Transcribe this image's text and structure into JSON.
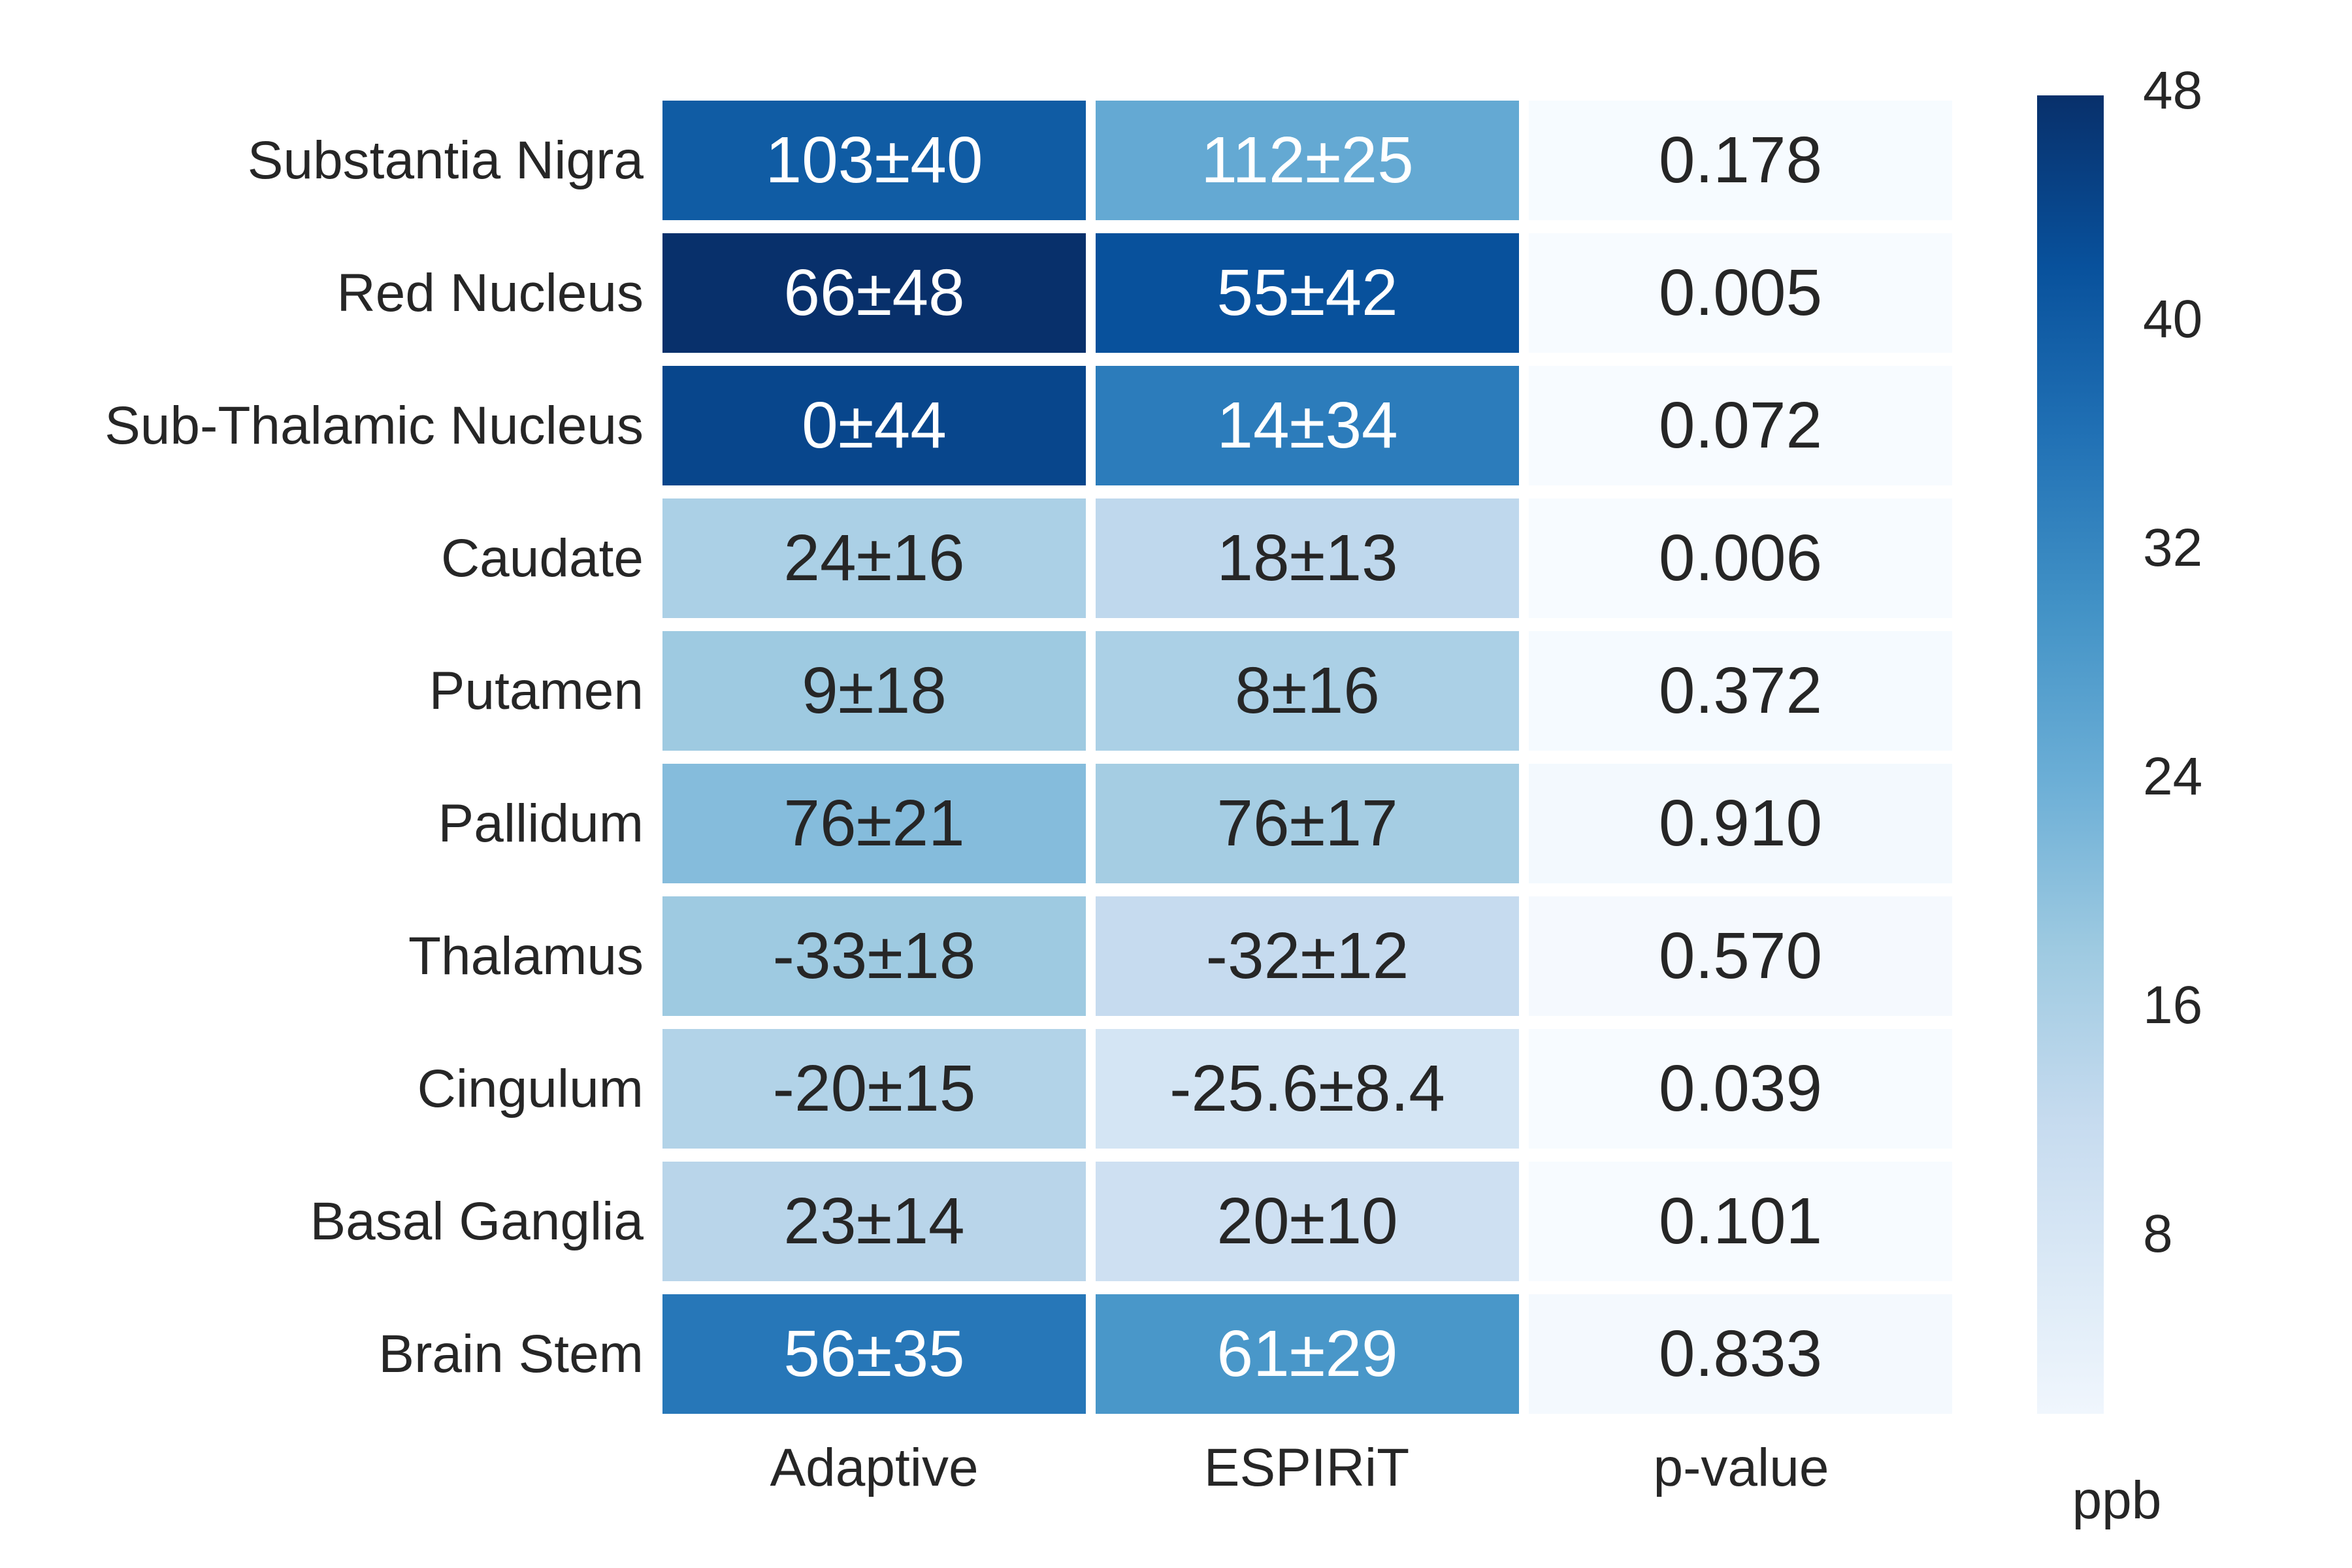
{
  "chart_data": {
    "type": "heatmap",
    "title": "",
    "columns": [
      "Adaptive",
      "ESPIRiT",
      "p-value"
    ],
    "rows": [
      {
        "label": "Substantia Nigra",
        "cells": [
          {
            "display": "103±40",
            "mean": 103,
            "std": 40
          },
          {
            "display": "112±25",
            "mean": 112,
            "std": 25
          },
          {
            "display": "0.178",
            "value": 0.178
          }
        ]
      },
      {
        "label": "Red Nucleus",
        "cells": [
          {
            "display": "66±48",
            "mean": 66,
            "std": 48
          },
          {
            "display": "55±42",
            "mean": 55,
            "std": 42
          },
          {
            "display": "0.005",
            "value": 0.005
          }
        ]
      },
      {
        "label": "Sub-Thalamic Nucleus",
        "cells": [
          {
            "display": "0±44",
            "mean": 0,
            "std": 44
          },
          {
            "display": "14±34",
            "mean": 14,
            "std": 34
          },
          {
            "display": "0.072",
            "value": 0.072
          }
        ]
      },
      {
        "label": "Caudate",
        "cells": [
          {
            "display": "24±16",
            "mean": 24,
            "std": 16
          },
          {
            "display": "18±13",
            "mean": 18,
            "std": 13
          },
          {
            "display": "0.006",
            "value": 0.006
          }
        ]
      },
      {
        "label": "Putamen",
        "cells": [
          {
            "display": "9±18",
            "mean": 9,
            "std": 18
          },
          {
            "display": "8±16",
            "mean": 8,
            "std": 16
          },
          {
            "display": "0.372",
            "value": 0.372
          }
        ]
      },
      {
        "label": "Pallidum",
        "cells": [
          {
            "display": "76±21",
            "mean": 76,
            "std": 21
          },
          {
            "display": "76±17",
            "mean": 76,
            "std": 17
          },
          {
            "display": "0.910",
            "value": 0.91
          }
        ]
      },
      {
        "label": "Thalamus",
        "cells": [
          {
            "display": "-33±18",
            "mean": -33,
            "std": 18
          },
          {
            "display": "-32±12",
            "mean": -32,
            "std": 12
          },
          {
            "display": "0.570",
            "value": 0.57
          }
        ]
      },
      {
        "label": "Cingulum",
        "cells": [
          {
            "display": "-20±15",
            "mean": -20,
            "std": 15
          },
          {
            "display": "-25.6±8.4",
            "mean": -25.6,
            "std": 8.4
          },
          {
            "display": "0.039",
            "value": 0.039
          }
        ]
      },
      {
        "label": "Basal Ganglia",
        "cells": [
          {
            "display": "23±14",
            "mean": 23,
            "std": 14
          },
          {
            "display": "20±10",
            "mean": 20,
            "std": 10
          },
          {
            "display": "0.101",
            "value": 0.101
          }
        ]
      },
      {
        "label": "Brain Stem",
        "cells": [
          {
            "display": "56±35",
            "mean": 56,
            "std": 35
          },
          {
            "display": "61±29",
            "mean": 61,
            "std": 29
          },
          {
            "display": "0.833",
            "value": 0.833
          }
        ]
      }
    ],
    "colorbar": {
      "label": "ppb",
      "ticks": [
        48,
        40,
        32,
        24,
        16,
        8
      ],
      "bar_top_value": 48,
      "bar_bottom_value": 1.7
    },
    "colormap": {
      "name": "Blues",
      "vmin": 0.005,
      "vmax": 48,
      "stops": [
        [
          0.0,
          "#f7fbff"
        ],
        [
          0.125,
          "#deebf7"
        ],
        [
          0.25,
          "#c6dbef"
        ],
        [
          0.375,
          "#9ecae1"
        ],
        [
          0.5,
          "#6baed6"
        ],
        [
          0.625,
          "#4292c6"
        ],
        [
          0.75,
          "#2171b5"
        ],
        [
          0.875,
          "#08519c"
        ],
        [
          1.0,
          "#08306b"
        ]
      ]
    },
    "annotation_text_colors": {
      "on_dark": "#ffffff",
      "on_light": "#262626"
    },
    "luminance_threshold": 0.408,
    "legend_position": "right",
    "grid": false
  }
}
